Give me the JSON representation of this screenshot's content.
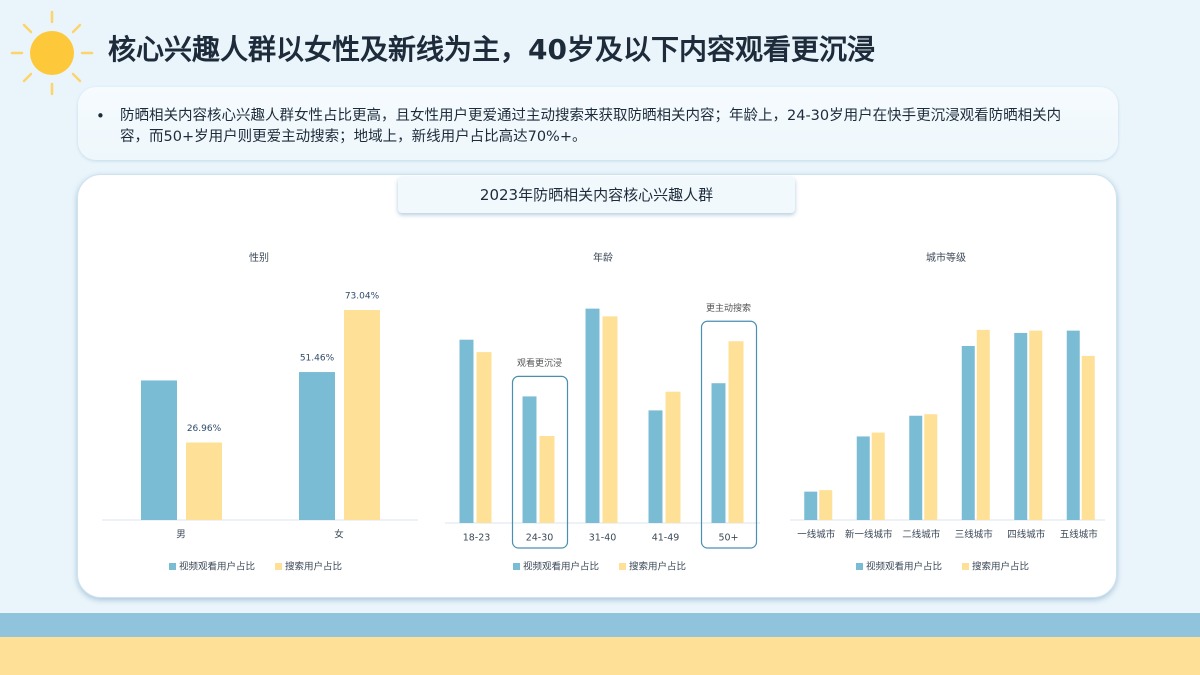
{
  "header": {
    "title": "核心兴趣人群以女性及新线为主，40岁及以下内容观看更沉浸"
  },
  "summary": {
    "bullet": "防晒相关内容核心兴趣人群女性占比更高，且女性用户更爱通过主动搜索来获取防晒相关内容；年龄上，24-30岁用户在快手更沉浸观看防晒相关内容，而50+岁用户则更爱主动搜索；地域上，新线用户占比高达70%+。"
  },
  "panel": {
    "title": "2023年防晒相关内容核心兴趣人群"
  },
  "chart_data": [
    {
      "type": "bar",
      "title": "性别",
      "categories": [
        "男",
        "女"
      ],
      "ylim": [
        0,
        80
      ],
      "series": [
        {
          "name": "视频观看用户占比",
          "color": "#7bbcd5",
          "values": [
            48.54,
            51.46
          ],
          "value_labels": [
            null,
            "51.46%"
          ]
        },
        {
          "name": "搜索用户占比",
          "color": "#fee097",
          "values": [
            26.96,
            73.04
          ],
          "value_labels": [
            "26.96%",
            "73.04%"
          ]
        }
      ]
    },
    {
      "type": "bar",
      "title": "年龄",
      "categories": [
        "18-23",
        "24-30",
        "31-40",
        "41-49",
        "50+"
      ],
      "ylim": [
        0,
        30
      ],
      "series": [
        {
          "name": "视频观看用户占比",
          "color": "#7bbcd5",
          "values": [
            23.6,
            16.3,
            27.6,
            14.5,
            18.0
          ]
        },
        {
          "name": "搜索用户占比",
          "color": "#fee097",
          "values": [
            22.0,
            11.2,
            26.6,
            16.9,
            23.4
          ]
        }
      ],
      "annotations": [
        {
          "text": "观看更沉浸",
          "category": "24-30"
        },
        {
          "text": "更主动搜索",
          "category": "50+"
        }
      ]
    },
    {
      "type": "bar",
      "title": "城市等级",
      "categories": [
        "一线城市",
        "新一线城市",
        "二线城市",
        "三线城市",
        "四线城市",
        "五线城市"
      ],
      "ylim": [
        0,
        30
      ],
      "series": [
        {
          "name": "视频观看用户占比",
          "color": "#7bbcd5",
          "values": [
            3.7,
            10.9,
            13.6,
            22.7,
            24.4,
            24.7
          ]
        },
        {
          "name": "搜索用户占比",
          "color": "#fee097",
          "values": [
            3.9,
            11.4,
            13.8,
            24.8,
            24.7,
            21.4
          ]
        }
      ]
    }
  ]
}
